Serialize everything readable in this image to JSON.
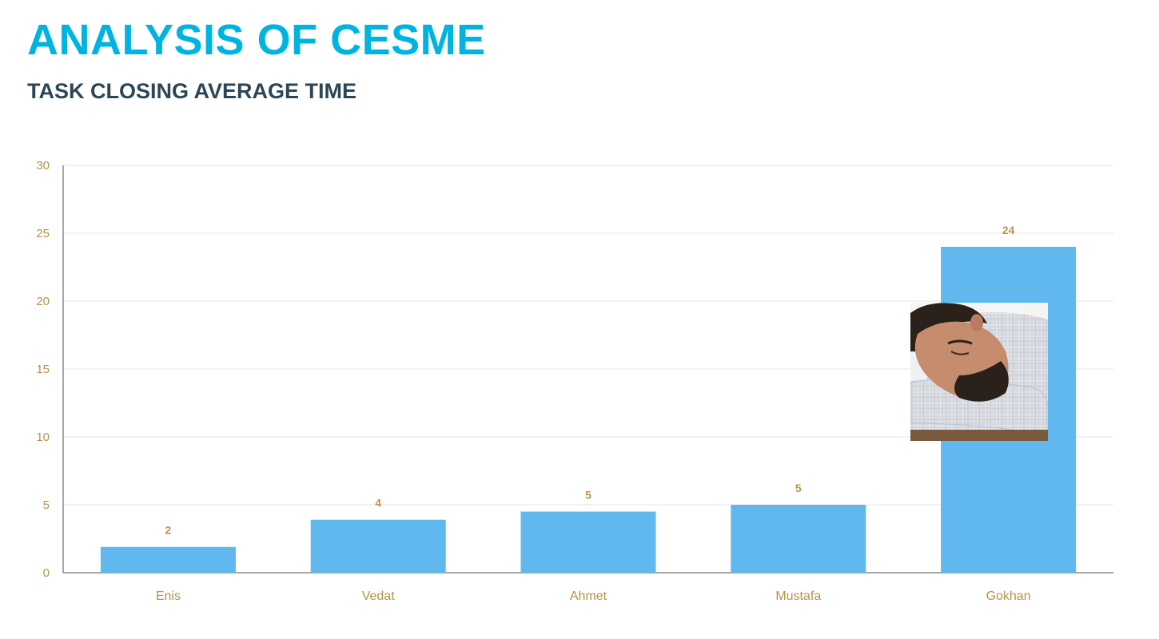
{
  "header": {
    "title": "ANALYSIS OF CESME",
    "subtitle": "TASK CLOSING AVERAGE TIME"
  },
  "colors": {
    "title": "#00b4e0",
    "subtitle": "#2d4656",
    "bar": "#60b8ee",
    "tick_text": "#b8924a",
    "gridline": "#e6e6e6",
    "axis": "#8a8a8a"
  },
  "chart_data": {
    "type": "bar",
    "categories": [
      "Enis",
      "Vedat",
      "Ahmet",
      "Mustafa",
      "Gokhan"
    ],
    "values": [
      1.9,
      3.9,
      4.5,
      5.0,
      24.0
    ],
    "data_labels": [
      "2",
      "4",
      "5",
      "5",
      "24"
    ],
    "title": "",
    "xlabel": "",
    "ylabel": "",
    "ylim": [
      0,
      30
    ],
    "yticks": [
      0,
      5,
      10,
      15,
      20,
      25,
      30
    ],
    "grid": true,
    "legend": "none"
  },
  "overlay_image": {
    "icon": "sleeping-man-photo",
    "description_for_layout_only": ""
  }
}
